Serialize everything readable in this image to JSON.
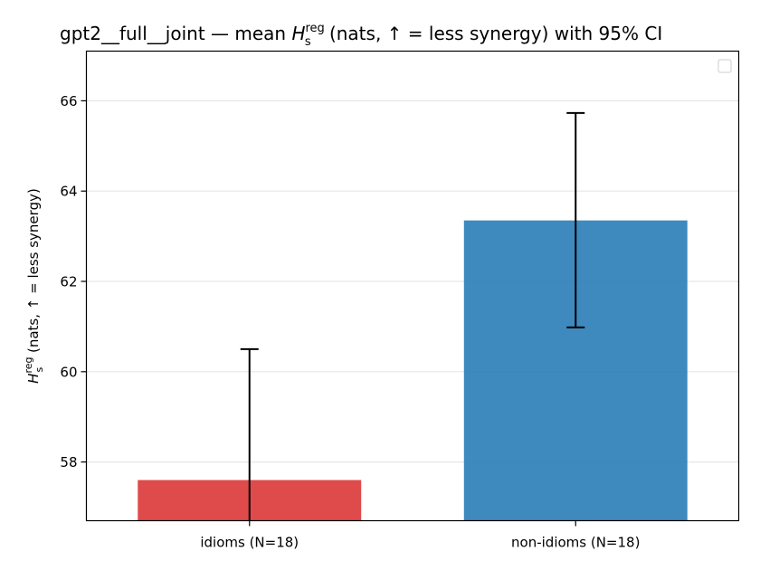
{
  "chart_data": {
    "type": "bar",
    "title_prefix": "gpt2__full__joint — mean ",
    "title_symbol": "H",
    "title_subscript": "s",
    "title_superscript": "reg",
    "title_suffix": " (nats, ↑ = less synergy) with 95% CI",
    "ylabel_symbol": "H",
    "ylabel_subscript": "s",
    "ylabel_superscript": "reg",
    "ylabel_suffix": " (nats, ↑ = less synergy)",
    "categories": [
      "idioms (N=18)",
      "non-idioms (N=18)"
    ],
    "values": [
      57.6,
      63.35
    ],
    "ci_low": [
      56.7,
      60.98
    ],
    "ci_high": [
      60.5,
      65.73
    ],
    "colors": [
      "#dc3c3c",
      "#2e7fb8"
    ],
    "ylim": [
      56.7,
      67.1
    ],
    "yticks": [
      58,
      60,
      62,
      64,
      66
    ],
    "grid": "y",
    "legend": "top-right (empty)"
  }
}
